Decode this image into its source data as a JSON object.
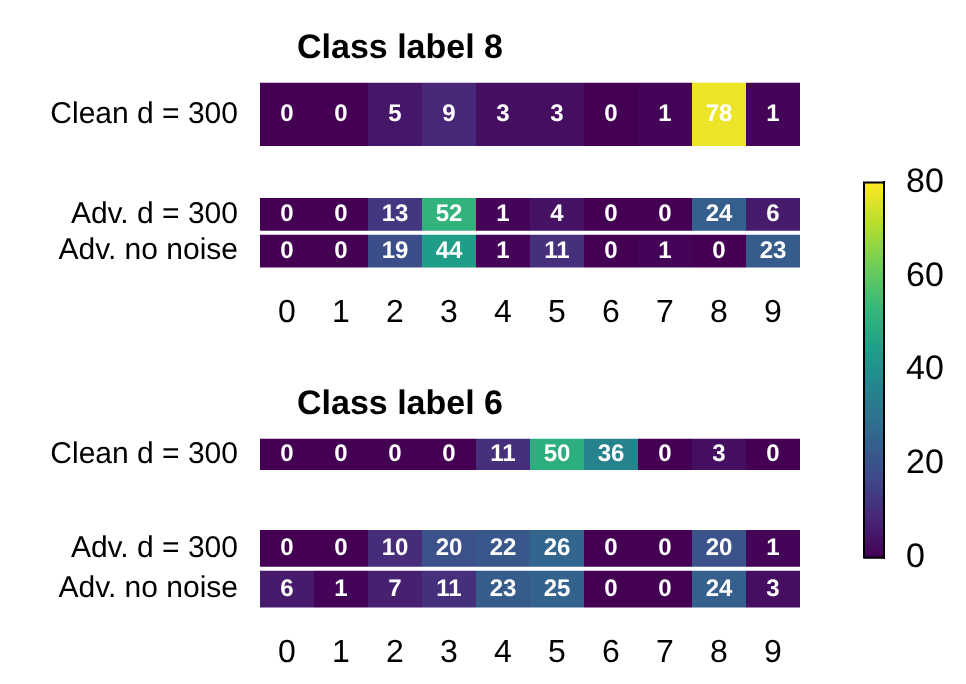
{
  "chart_data": [
    {
      "type": "heatmap",
      "title": "Class label 8",
      "categories": [
        null,
        null,
        null,
        null,
        null,
        null,
        null,
        null,
        null,
        null
      ],
      "y_categories": [
        "Clean d = 300"
      ],
      "cells": [
        [
          0,
          0,
          5,
          9,
          3,
          3,
          0,
          1,
          78,
          1
        ]
      ],
      "tick_labels": "y",
      "data_labels": true
    },
    {
      "type": "heatmap",
      "categories": [
        "0",
        "1",
        "2",
        "3",
        "4",
        "5",
        "6",
        "7",
        "8",
        "9"
      ],
      "y_categories": [
        "Adv. d = 300",
        "Adv. no noise"
      ],
      "cells": [
        [
          0,
          0,
          13,
          52,
          1,
          4,
          0,
          0,
          24,
          6
        ],
        [
          0,
          0,
          19,
          44,
          1,
          11,
          0,
          1,
          0,
          23
        ]
      ],
      "clim": [
        0,
        80
      ],
      "cticks": [
        0,
        20,
        40,
        60,
        80
      ],
      "data_labels": true
    },
    {
      "type": "heatmap",
      "title": "Class label 6",
      "categories": [
        null,
        null,
        null,
        null,
        null,
        null,
        null,
        null,
        null,
        null
      ],
      "y_categories": [
        "Clean d = 300"
      ],
      "cells": [
        [
          0,
          0,
          0,
          0,
          11,
          50,
          36,
          0,
          3,
          0
        ]
      ],
      "tick_labels": "y",
      "data_labels": true
    },
    {
      "type": "heatmap",
      "categories": [
        "0",
        "1",
        "2",
        "3",
        "4",
        "5",
        "6",
        "7",
        "8",
        "9"
      ],
      "y_categories": [
        "Adv. d = 300",
        "Adv. no noise"
      ],
      "cells": [
        [
          0,
          0,
          10,
          20,
          22,
          26,
          0,
          0,
          20,
          1
        ],
        [
          6,
          1,
          7,
          11,
          23,
          25,
          0,
          0,
          24,
          3
        ]
      ],
      "data_labels": true
    }
  ]
}
